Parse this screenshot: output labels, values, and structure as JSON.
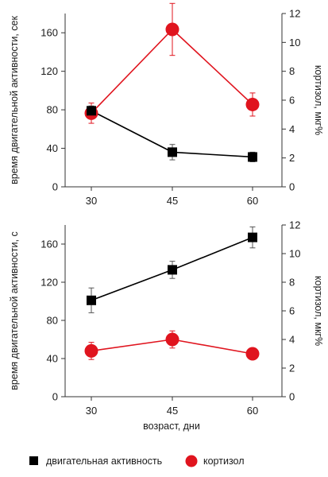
{
  "chart_data": [
    {
      "type": "line",
      "categories": [
        "30",
        "45",
        "60"
      ],
      "ylabel": "время двигательной активности, сек",
      "y2label": "кортизол, мкг%",
      "ylim": [
        0,
        180
      ],
      "y2lim": [
        0,
        12
      ],
      "yticks": [
        "0",
        "40",
        "80",
        "120",
        "160"
      ],
      "y2ticks": [
        "0",
        "2",
        "4",
        "6",
        "8",
        "10",
        "12"
      ],
      "series": [
        {
          "name": "двигательная активность",
          "axis": "left",
          "color": "#000000",
          "marker": "square",
          "values": [
            79,
            36,
            31
          ],
          "err": [
            5,
            8,
            5
          ]
        },
        {
          "name": "кортизол",
          "axis": "right",
          "color": "#e0141e",
          "marker": "circle",
          "values": [
            5.1,
            10.9,
            5.7
          ],
          "err": [
            0.7,
            1.8,
            0.8
          ]
        }
      ]
    },
    {
      "type": "line",
      "categories": [
        "30",
        "45",
        "60"
      ],
      "xlabel": "возраст, дни",
      "ylabel": "время двигательной активности, с",
      "y2label": "кортизол, мкг%",
      "ylim": [
        0,
        180
      ],
      "y2lim": [
        0,
        12
      ],
      "yticks": [
        "0",
        "40",
        "80",
        "120",
        "160"
      ],
      "y2ticks": [
        "0",
        "2",
        "4",
        "6",
        "8",
        "10",
        "12"
      ],
      "series": [
        {
          "name": "двигательная активность",
          "axis": "left",
          "color": "#000000",
          "marker": "square",
          "values": [
            101,
            133,
            167
          ],
          "err": [
            13,
            9,
            11
          ]
        },
        {
          "name": "кортизол",
          "axis": "right",
          "color": "#e0141e",
          "marker": "circle",
          "values": [
            3.2,
            4.0,
            3.0
          ],
          "err": [
            0.6,
            0.6,
            0.2
          ]
        }
      ]
    }
  ],
  "legend": [
    {
      "label": "двигательная активность",
      "marker": "square",
      "color": "#000000"
    },
    {
      "label": "кортизол",
      "marker": "circle",
      "color": "#e0141e"
    }
  ]
}
